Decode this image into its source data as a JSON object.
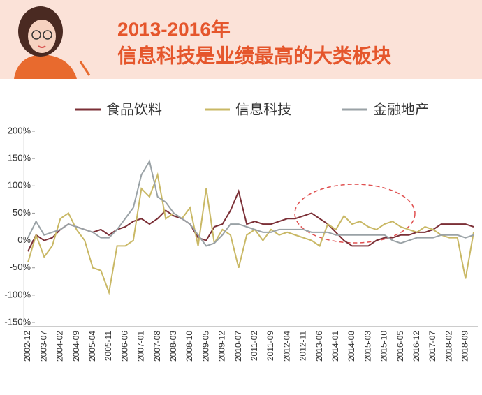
{
  "header": {
    "title_line1": "2013-2016年",
    "title_line2": "信息科技是业绩最高的大类板块"
  },
  "chart_data": {
    "type": "line",
    "categories": [
      "2002-12",
      null,
      "2003-07",
      null,
      "2004-02",
      null,
      "2004-09",
      null,
      "2005-04",
      null,
      "2005-11",
      null,
      "2006-06",
      null,
      "2007-01",
      null,
      "2007-08",
      null,
      "2008-03",
      null,
      "2008-10",
      null,
      "2009-05",
      null,
      "2009-12",
      null,
      "2010-07",
      null,
      "2011-02",
      null,
      "2011-09",
      null,
      "2012-04",
      null,
      "2012-11",
      null,
      "2013-06",
      null,
      "2014-01",
      null,
      "2014-08",
      null,
      "2015-03",
      null,
      "2015-10",
      null,
      "2016-05",
      null,
      "2016-12",
      null,
      "2017-07",
      null,
      "2018-02",
      null,
      "2018-09",
      null
    ],
    "series": [
      {
        "name": "食品饮料",
        "color": "#7b2f36",
        "values": [
          -20,
          10,
          0,
          5,
          20,
          30,
          25,
          20,
          15,
          20,
          10,
          20,
          25,
          35,
          40,
          30,
          40,
          55,
          45,
          40,
          30,
          5,
          0,
          25,
          30,
          55,
          90,
          30,
          35,
          30,
          30,
          35,
          40,
          40,
          45,
          50,
          40,
          30,
          15,
          0,
          -10,
          -10,
          -10,
          0,
          5,
          5,
          10,
          10,
          15,
          15,
          20,
          30,
          30,
          30,
          30,
          25
        ]
      },
      {
        "name": "信息科技",
        "color": "#c9b865",
        "values": [
          -40,
          10,
          -30,
          -10,
          40,
          50,
          20,
          0,
          -50,
          -55,
          -95,
          -10,
          -10,
          0,
          95,
          80,
          120,
          40,
          50,
          40,
          60,
          -10,
          95,
          -5,
          20,
          10,
          -50,
          10,
          20,
          0,
          20,
          10,
          15,
          10,
          5,
          0,
          -10,
          30,
          20,
          45,
          30,
          35,
          25,
          20,
          30,
          35,
          25,
          20,
          15,
          25,
          20,
          10,
          5,
          5,
          -70,
          15
        ]
      },
      {
        "name": "金融地产",
        "color": "#9aa2a6",
        "values": [
          5,
          35,
          10,
          15,
          20,
          30,
          25,
          20,
          15,
          5,
          5,
          20,
          40,
          60,
          120,
          145,
          80,
          70,
          50,
          40,
          30,
          10,
          -10,
          -5,
          10,
          30,
          30,
          25,
          20,
          15,
          15,
          20,
          20,
          20,
          20,
          15,
          15,
          15,
          10,
          10,
          10,
          10,
          10,
          10,
          10,
          0,
          -5,
          0,
          5,
          5,
          5,
          10,
          10,
          10,
          5,
          10
        ]
      }
    ],
    "ylim": [
      -150,
      200
    ],
    "yticks": [
      {
        "value": 200,
        "label": "200%"
      },
      {
        "value": 150,
        "label": "150%"
      },
      {
        "value": 100,
        "label": "100%"
      },
      {
        "value": 50,
        "label": "50%"
      },
      {
        "value": 0,
        "label": "0%"
      },
      {
        "value": -50,
        "label": "-50%"
      },
      {
        "value": -100,
        "label": "-100%"
      },
      {
        "value": -150,
        "label": "-150%"
      }
    ]
  }
}
